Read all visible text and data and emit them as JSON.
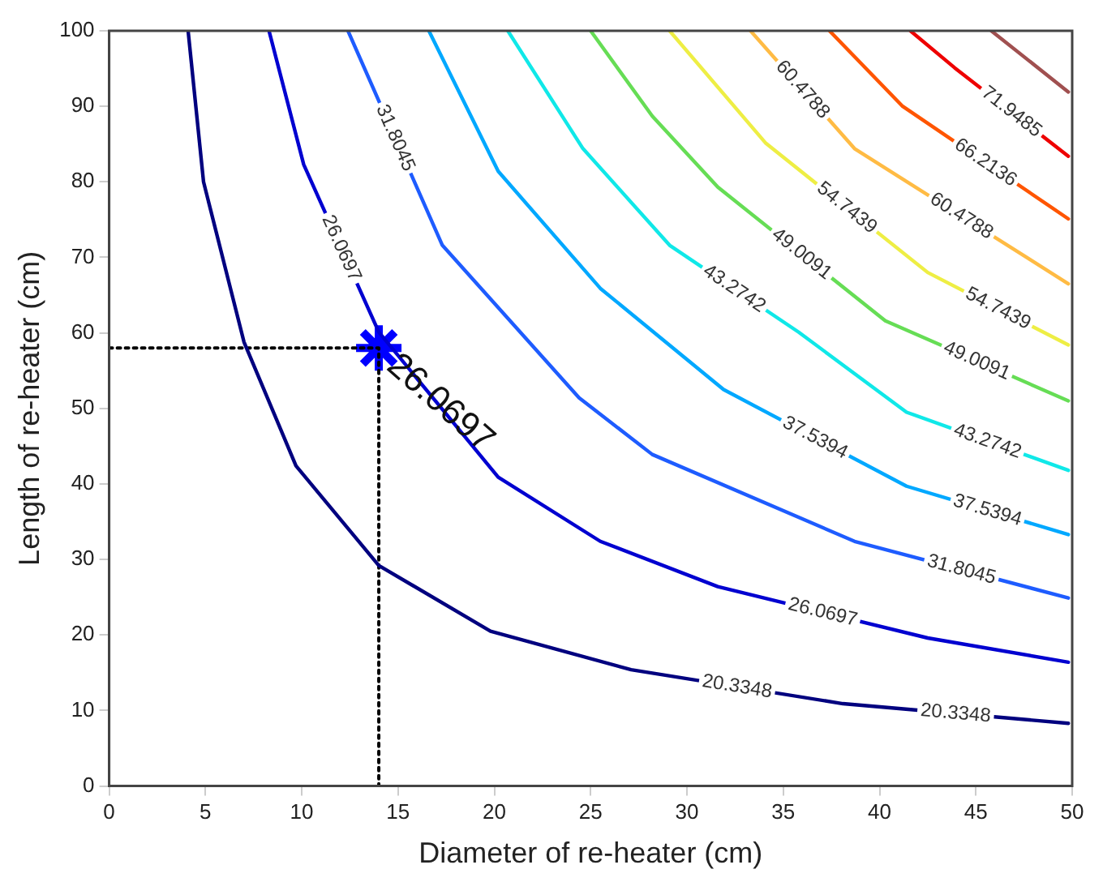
{
  "chart_data": {
    "type": "line",
    "xlabel": "Diameter of re-heater (cm)",
    "ylabel": "Length of re-heater (cm)",
    "xlim": [
      0,
      50
    ],
    "ylim": [
      0,
      100
    ],
    "xticks": [
      0,
      5,
      10,
      15,
      20,
      25,
      30,
      35,
      40,
      45,
      50
    ],
    "yticks": [
      0,
      10,
      20,
      30,
      40,
      50,
      60,
      70,
      80,
      90,
      100
    ],
    "grid": false,
    "legend": false,
    "marker": "none",
    "series": [
      {
        "name": "20.3348",
        "color": "#00007f",
        "x": [
          4.1,
          4.9,
          7.0,
          9.7,
          14.0,
          19.8,
          27.1,
          38.1,
          49.8
        ],
        "values": [
          100,
          80,
          58.8,
          42.4,
          29.2,
          20.5,
          15.4,
          10.9,
          8.3
        ]
      },
      {
        "name": "26.0697",
        "color": "#0000d0",
        "x": [
          8.3,
          10.1,
          14.0,
          20.2,
          25.5,
          31.6,
          42.5,
          49.8
        ],
        "values": [
          100,
          82.3,
          60.1,
          40.9,
          32.4,
          26.4,
          19.6,
          16.4
        ]
      },
      {
        "name": "31.8045",
        "color": "#1e5cff",
        "x": [
          12.4,
          17.3,
          24.4,
          28.2,
          38.7,
          49.8
        ],
        "values": [
          100,
          71.6,
          51.4,
          43.9,
          32.4,
          24.9
        ]
      },
      {
        "name": "37.5394",
        "color": "#00a8ff",
        "x": [
          16.6,
          20.2,
          25.5,
          31.9,
          41.4,
          49.8
        ],
        "values": [
          100,
          81.4,
          65.9,
          52.5,
          39.7,
          33.3
        ]
      },
      {
        "name": "43.2742",
        "color": "#10e8e8",
        "x": [
          20.7,
          24.6,
          29.1,
          35.8,
          41.4,
          49.8
        ],
        "values": [
          100,
          84.4,
          71.6,
          60.1,
          49.5,
          41.8
        ]
      },
      {
        "name": "49.0091",
        "color": "#66dd55",
        "x": [
          25.0,
          28.2,
          31.6,
          40.3,
          49.8
        ],
        "values": [
          100,
          88.7,
          79.3,
          61.6,
          51.0
        ]
      },
      {
        "name": "54.7439",
        "color": "#eeee44",
        "x": [
          29.1,
          34.1,
          42.5,
          49.8
        ],
        "values": [
          100,
          85.1,
          68.0,
          58.4
        ]
      },
      {
        "name": "60.4788",
        "color": "#ffbb44",
        "x": [
          33.3,
          38.7,
          49.8
        ],
        "values": [
          100,
          84.4,
          66.5
        ]
      },
      {
        "name": "66.2136",
        "color": "#ff5500",
        "x": [
          37.4,
          41.2,
          49.8
        ],
        "values": [
          100,
          90.0,
          75.1
        ]
      },
      {
        "name": "71.9485",
        "color": "#ee0000",
        "x": [
          41.6,
          43.9,
          49.8
        ],
        "values": [
          100,
          95.1,
          83.4
        ]
      },
      {
        "color": "#a05050",
        "x": [
          45.8,
          49.8
        ],
        "values": [
          100,
          91.9
        ]
      },
      {
        "color": "#000000",
        "line_style": "dotted",
        "x": [
          0,
          14,
          14
        ],
        "values": [
          58,
          58,
          0
        ]
      },
      {
        "type": "scatter",
        "marker": "cross",
        "color": "#0000ff",
        "x": [
          14
        ],
        "values": [
          58
        ]
      }
    ],
    "annotations": [
      {
        "text": "26.0697",
        "x": 14,
        "y": 58
      }
    ]
  }
}
